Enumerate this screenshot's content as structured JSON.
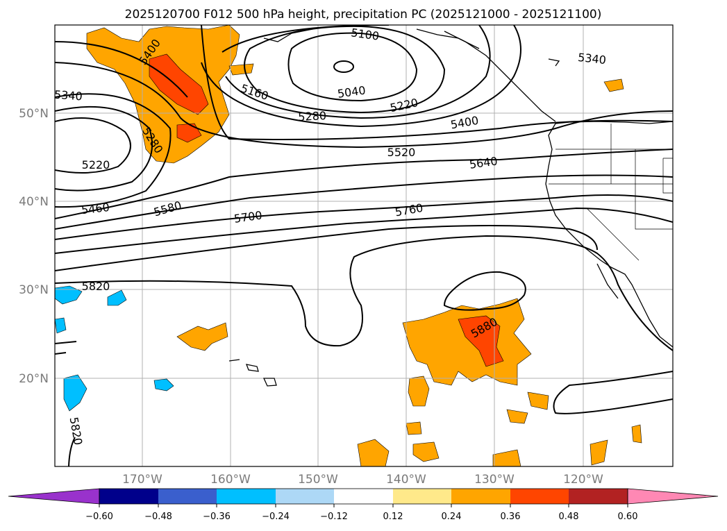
{
  "title": "2025120700 F012 500 hPa height, precipitation PC (2025121000 - 2025121100)",
  "lat_labels": [
    "50°N",
    "40°N",
    "30°N",
    "20°N"
  ],
  "lon_labels": [
    "170°W",
    "160°W",
    "150°W",
    "140°W",
    "130°W",
    "120°W"
  ],
  "contour_labels": [
    "5100",
    "5340",
    "5400",
    "5160",
    "5040",
    "5220",
    "5280",
    "5400",
    "5340",
    "5280",
    "5520",
    "5220",
    "5640",
    "5460",
    "5580",
    "5700",
    "5760",
    "5820",
    "5880",
    "5820"
  ],
  "colorbar": {
    "ticks": [
      "−0.60",
      "−0.48",
      "−0.36",
      "−0.24",
      "−0.12",
      "0.12",
      "0.24",
      "0.36",
      "0.48",
      "0.60"
    ],
    "colors": [
      "#9932cc",
      "#00008b",
      "#3a5fcd",
      "#00bfff",
      "#add8f6",
      "#ffffff",
      "#ffe98a",
      "#ffa500",
      "#ff4500",
      "#b22222",
      "#ff88b4"
    ]
  },
  "map_colors": {
    "precip_positive": "#ffa500",
    "precip_strong": "#ff4500",
    "precip_negative": "#00bfff",
    "contours": "#000000",
    "grid": "#b0b0b0"
  }
}
